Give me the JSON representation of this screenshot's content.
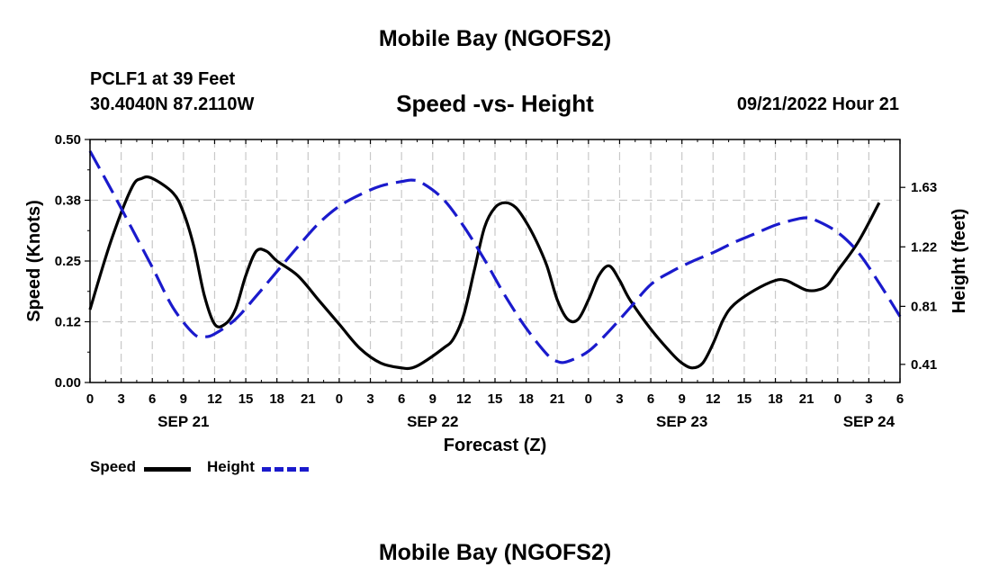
{
  "header": {
    "title": "Mobile Bay (NGOFS2)",
    "station": "PCLF1 at 39 Feet",
    "coords": "30.4040N  87.2110W",
    "chart_title": "Speed -vs- Height",
    "run": "09/21/2022 Hour 21",
    "footer_title": "Mobile Bay (NGOFS2)"
  },
  "legend": {
    "speed_label": "Speed",
    "height_label": "Height",
    "speed_color": "#000000",
    "height_color": "#1a1acc"
  },
  "chart_data": {
    "type": "line",
    "title": "Speed -vs- Height",
    "xlabel": "Forecast (Z)",
    "ylabel": "Speed (Knots)",
    "y2label": "Height (feet)",
    "xlim": [
      0,
      78
    ],
    "ylim": [
      0,
      0.5
    ],
    "y2lim": [
      0.285,
      1.96
    ],
    "grid": true,
    "x_tick_labels": [
      "0",
      "3",
      "6",
      "9",
      "12",
      "15",
      "18",
      "21",
      "0",
      "3",
      "6",
      "9",
      "12",
      "15",
      "18",
      "21",
      "0",
      "3",
      "6",
      "9",
      "12",
      "15",
      "18",
      "21",
      "0",
      "3",
      "6"
    ],
    "y_ticks": [
      {
        "value": 0.0,
        "label": "0.00"
      },
      {
        "value": 0.125,
        "label": "0.12"
      },
      {
        "value": 0.25,
        "label": "0.25"
      },
      {
        "value": 0.375,
        "label": "0.38"
      },
      {
        "value": 0.5,
        "label": "0.50"
      }
    ],
    "y2_ticks": [
      {
        "value": 0.41,
        "label": "0.41"
      },
      {
        "value": 0.81,
        "label": "0.81"
      },
      {
        "value": 1.22,
        "label": "1.22"
      },
      {
        "value": 1.63,
        "label": "1.63"
      }
    ],
    "date_labels": [
      {
        "x": 9,
        "label": "SEP 21"
      },
      {
        "x": 33,
        "label": "SEP 22"
      },
      {
        "x": 57,
        "label": "SEP 23"
      },
      {
        "x": 75,
        "label": "SEP 24"
      }
    ],
    "series": [
      {
        "name": "Speed",
        "axis": "left",
        "color": "#000000",
        "dash": false,
        "points": [
          [
            0,
            0.15
          ],
          [
            2,
            0.29
          ],
          [
            4,
            0.4
          ],
          [
            5,
            0.42
          ],
          [
            6,
            0.42
          ],
          [
            8,
            0.39
          ],
          [
            9,
            0.35
          ],
          [
            10,
            0.28
          ],
          [
            11,
            0.18
          ],
          [
            12,
            0.12
          ],
          [
            13,
            0.12
          ],
          [
            14,
            0.15
          ],
          [
            15,
            0.22
          ],
          [
            16,
            0.27
          ],
          [
            17,
            0.27
          ],
          [
            18,
            0.25
          ],
          [
            20,
            0.22
          ],
          [
            22,
            0.17
          ],
          [
            24,
            0.12
          ],
          [
            26,
            0.07
          ],
          [
            28,
            0.04
          ],
          [
            30,
            0.03
          ],
          [
            31,
            0.03
          ],
          [
            32,
            0.04
          ],
          [
            34,
            0.07
          ],
          [
            35,
            0.09
          ],
          [
            36,
            0.14
          ],
          [
            37,
            0.23
          ],
          [
            38,
            0.32
          ],
          [
            39,
            0.36
          ],
          [
            40,
            0.37
          ],
          [
            41,
            0.36
          ],
          [
            42,
            0.33
          ],
          [
            43,
            0.29
          ],
          [
            44,
            0.24
          ],
          [
            45,
            0.17
          ],
          [
            46,
            0.13
          ],
          [
            47,
            0.13
          ],
          [
            48,
            0.17
          ],
          [
            49,
            0.22
          ],
          [
            50,
            0.24
          ],
          [
            51,
            0.21
          ],
          [
            52,
            0.17
          ],
          [
            54,
            0.11
          ],
          [
            56,
            0.06
          ],
          [
            57,
            0.04
          ],
          [
            58,
            0.03
          ],
          [
            59,
            0.04
          ],
          [
            60,
            0.08
          ],
          [
            61,
            0.13
          ],
          [
            62,
            0.16
          ],
          [
            64,
            0.19
          ],
          [
            66,
            0.21
          ],
          [
            67,
            0.21
          ],
          [
            68,
            0.2
          ],
          [
            69,
            0.19
          ],
          [
            70,
            0.19
          ],
          [
            71,
            0.2
          ],
          [
            72,
            0.23
          ],
          [
            74,
            0.29
          ],
          [
            76,
            0.37
          ]
        ]
      },
      {
        "name": "Height",
        "axis": "right",
        "color": "#1a1acc",
        "dash": true,
        "points": [
          [
            0,
            1.88
          ],
          [
            2,
            1.62
          ],
          [
            4,
            1.35
          ],
          [
            6,
            1.08
          ],
          [
            8,
            0.8
          ],
          [
            10,
            0.62
          ],
          [
            11,
            0.6
          ],
          [
            12,
            0.62
          ],
          [
            14,
            0.72
          ],
          [
            16,
            0.88
          ],
          [
            18,
            1.05
          ],
          [
            20,
            1.22
          ],
          [
            22,
            1.38
          ],
          [
            24,
            1.5
          ],
          [
            26,
            1.58
          ],
          [
            28,
            1.64
          ],
          [
            30,
            1.67
          ],
          [
            31,
            1.68
          ],
          [
            32,
            1.66
          ],
          [
            34,
            1.55
          ],
          [
            36,
            1.36
          ],
          [
            38,
            1.13
          ],
          [
            40,
            0.88
          ],
          [
            42,
            0.66
          ],
          [
            44,
            0.48
          ],
          [
            45,
            0.43
          ],
          [
            46,
            0.43
          ],
          [
            48,
            0.5
          ],
          [
            50,
            0.64
          ],
          [
            52,
            0.8
          ],
          [
            54,
            0.96
          ],
          [
            56,
            1.05
          ],
          [
            58,
            1.12
          ],
          [
            60,
            1.18
          ],
          [
            62,
            1.25
          ],
          [
            64,
            1.31
          ],
          [
            66,
            1.37
          ],
          [
            68,
            1.41
          ],
          [
            69,
            1.42
          ],
          [
            70,
            1.4
          ],
          [
            72,
            1.32
          ],
          [
            74,
            1.18
          ],
          [
            76,
            0.97
          ],
          [
            78,
            0.74
          ]
        ]
      }
    ]
  }
}
